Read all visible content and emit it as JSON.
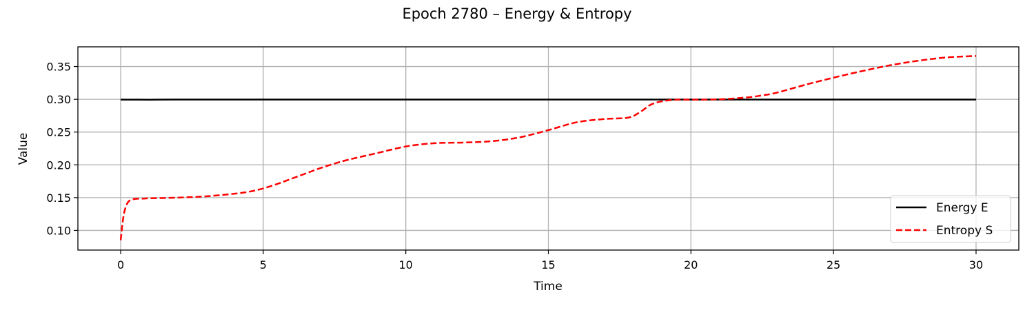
{
  "chart_data": {
    "type": "line",
    "title": "Epoch 2780 – Energy & Entropy",
    "xlabel": "Time",
    "ylabel": "Value",
    "xlim": [
      -1.5,
      31.5
    ],
    "ylim": [
      0.07,
      0.38
    ],
    "xticks": [
      0,
      5,
      10,
      15,
      20,
      25,
      30
    ],
    "xtick_labels": [
      "0",
      "5",
      "10",
      "15",
      "20",
      "25",
      "30"
    ],
    "yticks": [
      0.1,
      0.15,
      0.2,
      0.25,
      0.3,
      0.35
    ],
    "ytick_labels": [
      "0.10",
      "0.15",
      "0.20",
      "0.25",
      "0.30",
      "0.35"
    ],
    "grid": true,
    "legend_position": "lower-right",
    "series": [
      {
        "name": "Energy E",
        "color": "#000000",
        "style": "solid",
        "x": [
          0,
          1,
          2,
          4,
          6,
          8,
          10,
          12,
          14,
          16,
          18,
          20,
          22,
          24,
          26,
          28,
          30
        ],
        "y": [
          0.2995,
          0.2994,
          0.2996,
          0.2996,
          0.2996,
          0.2996,
          0.2996,
          0.2996,
          0.2996,
          0.2996,
          0.2996,
          0.2996,
          0.2996,
          0.2996,
          0.2996,
          0.2996,
          0.2996
        ]
      },
      {
        "name": "Entropy S",
        "color": "#ff0000",
        "style": "dashed",
        "x": [
          0,
          0.1,
          0.2,
          0.3,
          0.5,
          0.8,
          1,
          2,
          3,
          4,
          4.5,
          5,
          5.5,
          6,
          6.5,
          7,
          7.5,
          8,
          9,
          10,
          11,
          12,
          13,
          14,
          15,
          16,
          17,
          17.8,
          18.2,
          18.6,
          19,
          19.5,
          20,
          21,
          22,
          22.5,
          23,
          24,
          25,
          26,
          27,
          28,
          29,
          30
        ],
        "y": [
          0.085,
          0.122,
          0.138,
          0.145,
          0.148,
          0.1485,
          0.149,
          0.15,
          0.152,
          0.156,
          0.159,
          0.164,
          0.171,
          0.179,
          0.187,
          0.195,
          0.202,
          0.208,
          0.218,
          0.228,
          0.233,
          0.234,
          0.236,
          0.242,
          0.253,
          0.265,
          0.27,
          0.272,
          0.28,
          0.292,
          0.297,
          0.2995,
          0.2995,
          0.3,
          0.303,
          0.306,
          0.31,
          0.322,
          0.333,
          0.343,
          0.352,
          0.359,
          0.364,
          0.366
        ]
      }
    ]
  }
}
